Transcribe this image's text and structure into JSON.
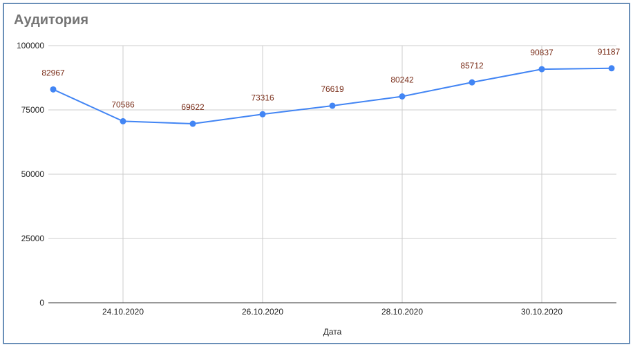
{
  "chart_data": {
    "type": "line",
    "title": "Аудитория",
    "xlabel": "Дата",
    "ylabel": "",
    "x": [
      "23.10.2020",
      "24.10.2020",
      "25.10.2020",
      "26.10.2020",
      "27.10.2020",
      "28.10.2020",
      "29.10.2020",
      "30.10.2020",
      "31.10.2020"
    ],
    "x_tick_labels": [
      "24.10.2020",
      "26.10.2020",
      "28.10.2020",
      "30.10.2020"
    ],
    "y_ticks": [
      0,
      25000,
      50000,
      75000,
      100000
    ],
    "ylim": [
      0,
      100000
    ],
    "values": [
      82967,
      70586,
      69622,
      73316,
      76619,
      80242,
      85712,
      90837,
      91187
    ],
    "data_labels": [
      "82967",
      "70586",
      "69622",
      "73316",
      "76619",
      "80242",
      "85712",
      "90837",
      "91187"
    ],
    "grid": true,
    "legend": "none",
    "colors": {
      "line": "#4285f4",
      "data_label": "#7a2e1a",
      "grid": "#cccccc",
      "title": "#757575"
    }
  }
}
